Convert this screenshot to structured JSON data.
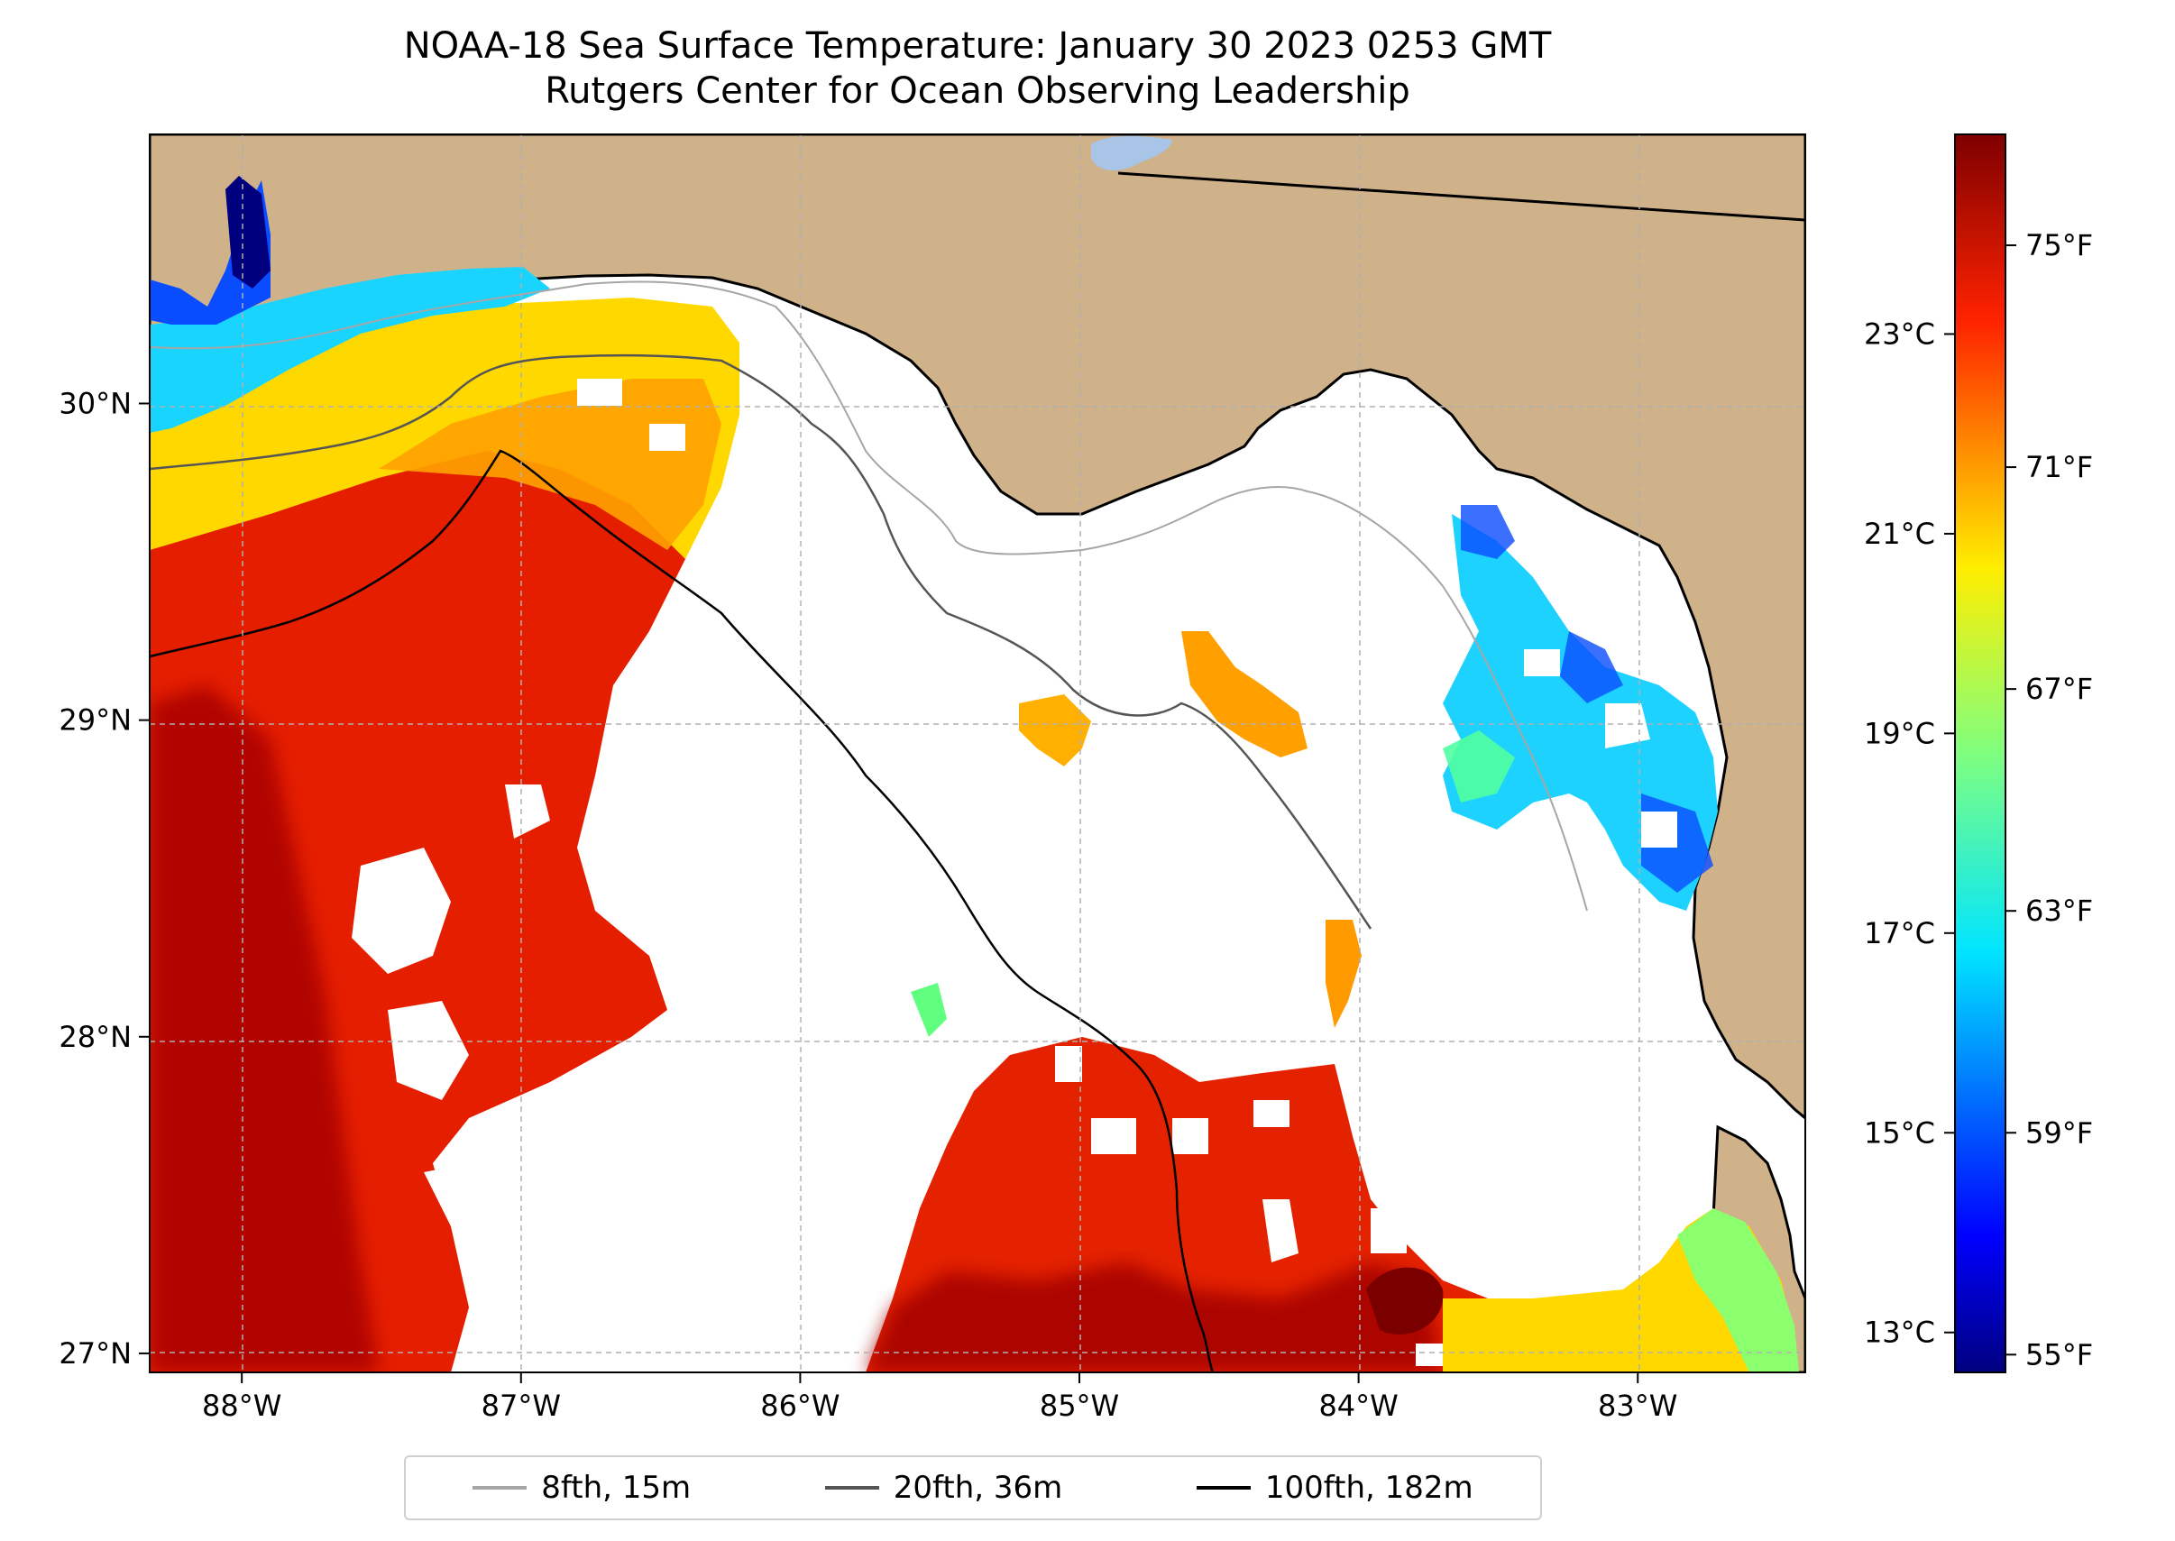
{
  "title": {
    "line1": "NOAA-18 Sea Surface Temperature: January 30 2023 0253 GMT",
    "line2": "Rutgers Center for Ocean Observing Leadership"
  },
  "map": {
    "lon_range": [
      -88.33,
      -82.4
    ],
    "lat_range": [
      26.94,
      30.85
    ],
    "lon_ticks": [
      {
        "value": -88,
        "label": "88°W"
      },
      {
        "value": -87,
        "label": "87°W"
      },
      {
        "value": -86,
        "label": "86°W"
      },
      {
        "value": -85,
        "label": "85°W"
      },
      {
        "value": -84,
        "label": "84°W"
      },
      {
        "value": -83,
        "label": "83°W"
      }
    ],
    "lat_ticks": [
      {
        "value": 30,
        "label": "30°N"
      },
      {
        "value": 29,
        "label": "29°N"
      },
      {
        "value": 28,
        "label": "28°N"
      },
      {
        "value": 27,
        "label": "27°N"
      }
    ],
    "grid": true,
    "land_color": "#cfb28a",
    "ocean_color": "#ffffff"
  },
  "colorbar": {
    "colormap": "jet",
    "celsius_range": [
      12.6,
      25.0
    ],
    "fahrenheit_ticks": [
      {
        "value": 75,
        "label": "75°F"
      },
      {
        "value": 71,
        "label": "71°F"
      },
      {
        "value": 67,
        "label": "67°F"
      },
      {
        "value": 63,
        "label": "63°F"
      },
      {
        "value": 59,
        "label": "59°F"
      },
      {
        "value": 55,
        "label": "55°F"
      }
    ],
    "celsius_ticks": [
      {
        "value": 23,
        "label": "23°C"
      },
      {
        "value": 21,
        "label": "21°C"
      },
      {
        "value": 19,
        "label": "19°C"
      },
      {
        "value": 17,
        "label": "17°C"
      },
      {
        "value": 15,
        "label": "15°C"
      },
      {
        "value": 13,
        "label": "13°C"
      }
    ]
  },
  "legend": {
    "items": [
      {
        "label": "8fth, 15m",
        "color": "#a6a6a6"
      },
      {
        "label": "20fth, 36m",
        "color": "#555555"
      },
      {
        "label": "100fth, 182m",
        "color": "#000000"
      }
    ]
  }
}
